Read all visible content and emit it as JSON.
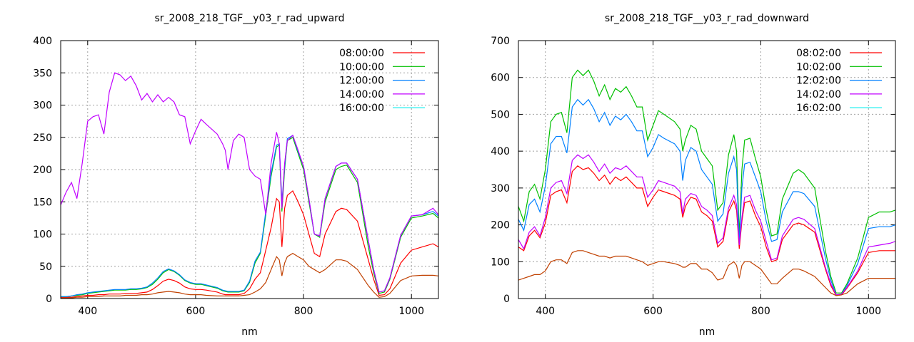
{
  "chart_data": [
    {
      "type": "line",
      "title": "sr_2008_218_TGF__y03_r_rad_upward",
      "xlabel": "nm",
      "ylabel": "",
      "xlim": [
        350,
        1050
      ],
      "ylim": [
        0,
        400
      ],
      "xticks": [
        400,
        600,
        800,
        1000
      ],
      "yticks": [
        0,
        50,
        100,
        150,
        200,
        250,
        300,
        350,
        400
      ],
      "grid": true,
      "legend_position": "top-right",
      "x": [
        350,
        360,
        370,
        380,
        390,
        400,
        410,
        420,
        430,
        440,
        450,
        460,
        470,
        480,
        490,
        500,
        510,
        520,
        530,
        540,
        550,
        560,
        570,
        580,
        590,
        600,
        610,
        620,
        640,
        650,
        655,
        660,
        670,
        680,
        690,
        700,
        710,
        720,
        730,
        740,
        750,
        755,
        760,
        765,
        770,
        780,
        790,
        800,
        810,
        820,
        830,
        840,
        860,
        870,
        880,
        900,
        920,
        930,
        940,
        950,
        960,
        980,
        1000,
        1020,
        1040,
        1050
      ],
      "series": [
        {
          "name": "08:00:00",
          "legend_color": "#ff0000",
          "line_color": "#ff0000",
          "values": [
            2,
            2,
            2,
            3,
            4,
            5,
            5,
            6,
            6,
            7,
            7,
            7,
            8,
            8,
            8,
            9,
            10,
            14,
            20,
            27,
            30,
            28,
            24,
            18,
            15,
            14,
            14,
            13,
            10,
            7,
            6,
            6,
            6,
            6,
            8,
            15,
            30,
            40,
            75,
            110,
            155,
            150,
            80,
            140,
            160,
            167,
            150,
            130,
            100,
            70,
            65,
            100,
            135,
            140,
            138,
            120,
            60,
            30,
            5,
            6,
            15,
            55,
            75,
            80,
            85,
            80
          ]
        },
        {
          "name": "10:00:00",
          "legend_color": "#00c000",
          "line_color": "#00c000",
          "values": [
            3,
            3,
            4,
            5,
            6,
            8,
            9,
            10,
            11,
            12,
            13,
            13,
            13,
            14,
            14,
            15,
            17,
            22,
            30,
            40,
            45,
            42,
            36,
            28,
            24,
            22,
            22,
            20,
            16,
            12,
            11,
            10,
            10,
            10,
            12,
            25,
            55,
            70,
            130,
            190,
            235,
            238,
            135,
            200,
            245,
            250,
            225,
            200,
            150,
            100,
            95,
            150,
            200,
            205,
            207,
            180,
            80,
            40,
            8,
            10,
            30,
            95,
            125,
            128,
            132,
            125
          ]
        },
        {
          "name": "12:00:00",
          "legend_color": "#0080ff",
          "line_color": "#0080ff",
          "values": [
            3,
            3,
            4,
            6,
            7,
            9,
            10,
            11,
            12,
            13,
            14,
            14,
            14,
            15,
            15,
            16,
            18,
            24,
            32,
            42,
            46,
            43,
            37,
            29,
            25,
            23,
            23,
            21,
            17,
            13,
            12,
            11,
            11,
            11,
            13,
            27,
            58,
            72,
            135,
            195,
            238,
            240,
            150,
            205,
            248,
            253,
            228,
            205,
            155,
            100,
            97,
            155,
            205,
            210,
            210,
            185,
            90,
            45,
            10,
            12,
            32,
            98,
            128,
            130,
            135,
            128
          ]
        },
        {
          "name": "14:00:00",
          "legend_color": "#c000ff",
          "line_color": "#c000ff",
          "values": [
            145,
            165,
            180,
            155,
            210,
            275,
            282,
            285,
            255,
            320,
            350,
            347,
            338,
            345,
            330,
            308,
            318,
            305,
            316,
            305,
            312,
            305,
            285,
            282,
            240,
            260,
            278,
            270,
            255,
            240,
            230,
            200,
            245,
            255,
            250,
            200,
            190,
            185,
            130,
            210,
            258,
            240,
            140,
            210,
            245,
            253,
            230,
            205,
            155,
            100,
            97,
            155,
            205,
            210,
            210,
            185,
            90,
            45,
            10,
            12,
            32,
            98,
            128,
            130,
            140,
            130
          ]
        },
        {
          "name": "16:00:00",
          "legend_color": "#00eeee",
          "line_color": "#c04000",
          "values": [
            1,
            1,
            1,
            2,
            2,
            3,
            3,
            3,
            4,
            4,
            4,
            4,
            5,
            5,
            5,
            6,
            6,
            7,
            9,
            10,
            11,
            10,
            9,
            7,
            6,
            6,
            6,
            5,
            4,
            4,
            4,
            4,
            4,
            4,
            5,
            6,
            10,
            15,
            25,
            45,
            65,
            60,
            35,
            55,
            65,
            70,
            65,
            60,
            50,
            45,
            40,
            45,
            60,
            60,
            58,
            45,
            20,
            10,
            2,
            3,
            8,
            28,
            35,
            36,
            36,
            35
          ]
        }
      ]
    },
    {
      "type": "line",
      "title": "sr_2008_218_TGF__y03_r_rad_downward",
      "xlabel": "nm",
      "ylabel": "",
      "xlim": [
        350,
        1050
      ],
      "ylim": [
        0,
        700
      ],
      "xticks": [
        400,
        600,
        800,
        1000
      ],
      "yticks": [
        0,
        100,
        200,
        300,
        400,
        500,
        600,
        700
      ],
      "grid": true,
      "legend_position": "top-right",
      "x": [
        350,
        360,
        370,
        380,
        390,
        400,
        410,
        420,
        430,
        440,
        450,
        460,
        470,
        480,
        490,
        500,
        510,
        520,
        530,
        540,
        550,
        560,
        570,
        580,
        590,
        600,
        610,
        620,
        640,
        650,
        655,
        660,
        670,
        680,
        690,
        700,
        710,
        720,
        730,
        740,
        750,
        755,
        760,
        765,
        770,
        780,
        790,
        800,
        810,
        820,
        830,
        840,
        860,
        870,
        880,
        900,
        920,
        930,
        940,
        950,
        960,
        980,
        1000,
        1020,
        1040,
        1050
      ],
      "series": [
        {
          "name": "08:02:00",
          "legend_color": "#ff0000",
          "line_color": "#ff0000",
          "values": [
            140,
            130,
            170,
            185,
            165,
            205,
            280,
            290,
            295,
            260,
            345,
            360,
            350,
            355,
            340,
            320,
            335,
            310,
            330,
            320,
            330,
            315,
            300,
            300,
            250,
            275,
            295,
            290,
            280,
            270,
            220,
            250,
            275,
            270,
            235,
            225,
            210,
            140,
            155,
            235,
            265,
            240,
            135,
            210,
            260,
            265,
            225,
            195,
            140,
            100,
            105,
            160,
            200,
            205,
            200,
            180,
            80,
            35,
            8,
            10,
            28,
            70,
            125,
            130,
            130,
            130
          ]
        },
        {
          "name": "10:02:00",
          "legend_color": "#00c000",
          "line_color": "#00c000",
          "values": [
            250,
            210,
            290,
            310,
            270,
            350,
            480,
            500,
            505,
            450,
            600,
            620,
            605,
            620,
            590,
            550,
            580,
            540,
            570,
            560,
            575,
            550,
            520,
            520,
            430,
            470,
            510,
            500,
            480,
            460,
            400,
            430,
            470,
            460,
            400,
            380,
            360,
            240,
            260,
            390,
            445,
            400,
            170,
            350,
            430,
            435,
            380,
            330,
            240,
            170,
            175,
            270,
            340,
            350,
            340,
            300,
            130,
            60,
            15,
            15,
            40,
            110,
            220,
            235,
            235,
            240
          ]
        },
        {
          "name": "12:02:00",
          "legend_color": "#0080ff",
          "line_color": "#0080ff",
          "values": [
            215,
            185,
            255,
            270,
            235,
            305,
            420,
            440,
            440,
            395,
            520,
            540,
            525,
            540,
            515,
            480,
            505,
            470,
            495,
            485,
            500,
            480,
            455,
            455,
            385,
            410,
            445,
            435,
            420,
            400,
            320,
            375,
            410,
            400,
            350,
            330,
            310,
            210,
            230,
            340,
            385,
            350,
            150,
            300,
            365,
            370,
            330,
            290,
            210,
            155,
            160,
            235,
            290,
            290,
            285,
            250,
            110,
            50,
            10,
            12,
            35,
            95,
            190,
            195,
            195,
            200
          ]
        },
        {
          "name": "14:02:00",
          "legend_color": "#c000ff",
          "line_color": "#c000ff",
          "values": [
            160,
            135,
            180,
            195,
            170,
            220,
            300,
            315,
            320,
            285,
            375,
            390,
            380,
            390,
            370,
            345,
            365,
            340,
            355,
            350,
            360,
            345,
            330,
            330,
            275,
            295,
            320,
            315,
            305,
            290,
            230,
            270,
            285,
            280,
            250,
            240,
            225,
            150,
            165,
            245,
            280,
            255,
            145,
            220,
            275,
            280,
            240,
            210,
            155,
            105,
            110,
            170,
            215,
            220,
            215,
            190,
            85,
            40,
            10,
            12,
            30,
            75,
            140,
            145,
            150,
            155
          ]
        },
        {
          "name": "16:02:00",
          "legend_color": "#00eeee",
          "line_color": "#c04000",
          "values": [
            50,
            55,
            60,
            65,
            65,
            75,
            100,
            105,
            105,
            95,
            125,
            130,
            130,
            125,
            120,
            115,
            115,
            110,
            115,
            115,
            115,
            110,
            105,
            100,
            90,
            95,
            100,
            100,
            95,
            90,
            85,
            85,
            95,
            95,
            80,
            80,
            70,
            50,
            55,
            90,
            100,
            90,
            55,
            90,
            100,
            100,
            90,
            80,
            60,
            40,
            40,
            55,
            80,
            80,
            75,
            60,
            30,
            15,
            8,
            10,
            15,
            40,
            55,
            55,
            55,
            55
          ]
        }
      ]
    }
  ]
}
